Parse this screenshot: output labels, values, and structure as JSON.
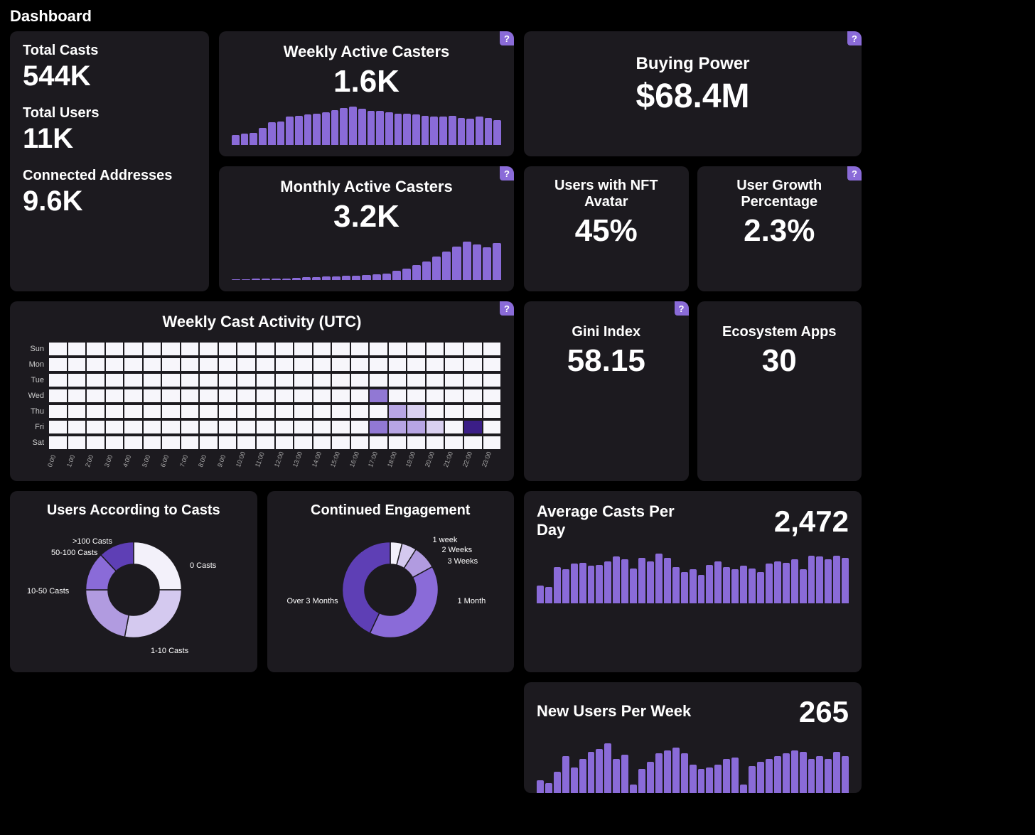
{
  "page_title": "Dashboard",
  "help_icon": "?",
  "colors": {
    "bg": "#000000",
    "card": "#1c1a1f",
    "text": "#ffffff",
    "accent": "#8a6bd8",
    "accent_dark": "#5e3fb5",
    "accent_deep": "#3b1e87",
    "grid_cell": "#f7f6fb",
    "muted": "#cccccc"
  },
  "kpi_stack": {
    "total_casts": {
      "label": "Total Casts",
      "value": "544K"
    },
    "total_users": {
      "label": "Total Users",
      "value": "11K"
    },
    "connected_addresses": {
      "label": "Connected Addresses",
      "value": "9.6K"
    }
  },
  "weekly_active": {
    "title": "Weekly Active Casters",
    "value": "1.6K",
    "bars": [
      18,
      20,
      22,
      30,
      40,
      42,
      50,
      52,
      54,
      56,
      58,
      62,
      66,
      68,
      64,
      60,
      60,
      58,
      56,
      56,
      54,
      52,
      50,
      50,
      52,
      48,
      46,
      50,
      48,
      44
    ]
  },
  "monthly_active": {
    "title": "Monthly Active Casters",
    "value": "3.2K",
    "bars": [
      2,
      2,
      3,
      3,
      4,
      4,
      5,
      6,
      6,
      8,
      8,
      10,
      10,
      12,
      14,
      16,
      22,
      28,
      36,
      44,
      56,
      68,
      80,
      92,
      86,
      78,
      88
    ]
  },
  "buying_power": {
    "title": "Buying Power",
    "value": "$68.4M"
  },
  "nft_avatar": {
    "title": "Users with NFT Avatar",
    "value": "45%"
  },
  "user_growth": {
    "title": "User Growth Percentage",
    "value": "2.3%"
  },
  "gini": {
    "title": "Gini Index",
    "value": "58.15"
  },
  "ecosystem": {
    "title": "Ecosystem Apps",
    "value": "30"
  },
  "avg_casts": {
    "title": "Average Casts Per Day",
    "value": "2,472",
    "bars": [
      30,
      28,
      62,
      58,
      68,
      70,
      64,
      66,
      72,
      80,
      76,
      60,
      78,
      72,
      86,
      78,
      62,
      54,
      58,
      48,
      66,
      72,
      62,
      58,
      64,
      60,
      54,
      68,
      72,
      70,
      76,
      58,
      82,
      80,
      76,
      82,
      78
    ]
  },
  "new_users": {
    "title": "New Users Per Week",
    "value": "265",
    "bars": [
      18,
      14,
      30,
      52,
      36,
      48,
      58,
      62,
      70,
      48,
      54,
      12,
      34,
      44,
      56,
      60,
      64,
      56,
      40,
      34,
      36,
      40,
      48,
      50,
      12,
      38,
      44,
      48,
      52,
      56,
      60,
      58,
      48,
      52,
      48,
      58,
      52
    ]
  },
  "heatmap": {
    "title": "Weekly Cast Activity (UTC)",
    "days": [
      "Sun",
      "Mon",
      "Tue",
      "Wed",
      "Thu",
      "Fri",
      "Sat"
    ],
    "hours": [
      "0:00",
      "1:00",
      "2:00",
      "3:00",
      "4:00",
      "5:00",
      "6:00",
      "7:00",
      "8:00",
      "9:00",
      "10:00",
      "11:00",
      "12:00",
      "13:00",
      "14:00",
      "15:00",
      "16:00",
      "17:00",
      "18:00",
      "19:00",
      "20:00",
      "21:00",
      "22:00",
      "23:00"
    ],
    "base_color": "#f7f6fb",
    "colors_by_level": [
      "#f7f6fb",
      "#d9d0f0",
      "#b7a5e4",
      "#9178d4",
      "#5e3fb5",
      "#3b1e87"
    ],
    "cells": {
      "Wed": {
        "17": 3
      },
      "Thu": {
        "18": 2,
        "19": 1
      },
      "Fri": {
        "17": 3,
        "18": 2,
        "19": 2,
        "20": 1,
        "22": 5
      }
    }
  },
  "users_by_casts": {
    "title": "Users According to Casts",
    "type": "donut",
    "segments": [
      {
        "label": "0 Casts",
        "value": 25,
        "color": "#f3f1fa"
      },
      {
        "label": "1-10 Casts",
        "value": 28,
        "color": "#d4c9ef"
      },
      {
        "label": "10-50 Casts",
        "value": 22,
        "color": "#b19be0"
      },
      {
        "label": "50-100 Casts",
        "value": 13,
        "color": "#8a6bd8"
      },
      {
        "label": ">100 Casts",
        "value": 12,
        "color": "#5e3fb5"
      }
    ]
  },
  "engagement": {
    "title": "Continued Engagement",
    "type": "donut",
    "segments": [
      {
        "label": "1 week",
        "value": 4,
        "color": "#f3f1fa"
      },
      {
        "label": "2 Weeks",
        "value": 5,
        "color": "#d4c9ef"
      },
      {
        "label": "3 Weeks",
        "value": 8,
        "color": "#b19be0"
      },
      {
        "label": "1 Month",
        "value": 40,
        "color": "#8a6bd8"
      },
      {
        "label": "Over 3 Months",
        "value": 43,
        "color": "#5e3fb5"
      }
    ]
  }
}
